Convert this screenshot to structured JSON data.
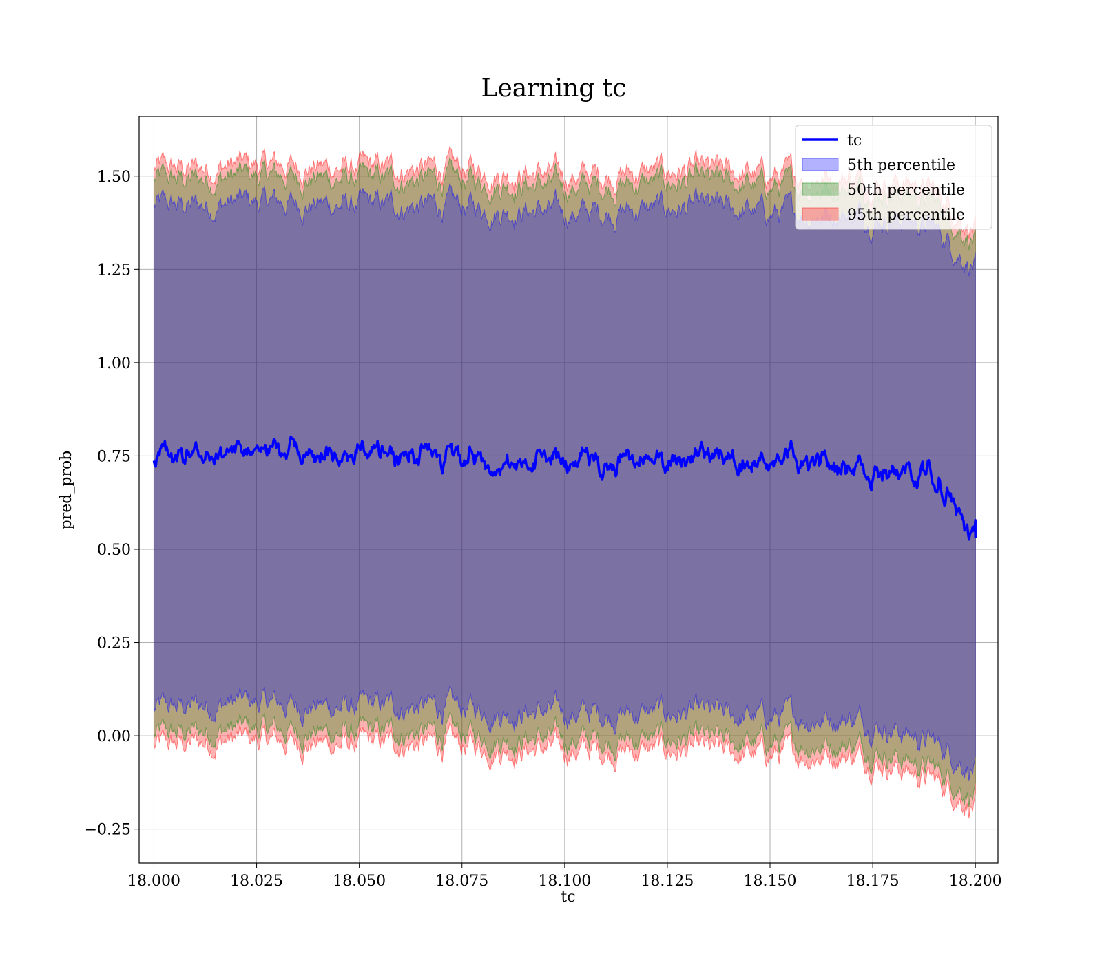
{
  "chart_data": {
    "type": "line",
    "title": "Learning tc",
    "xlabel": "tc",
    "ylabel": "pred_prob",
    "xlim": [
      17.9964,
      18.2055
    ],
    "ylim": [
      -0.341,
      1.66
    ],
    "x_ticks": [
      18.0,
      18.025,
      18.05,
      18.075,
      18.1,
      18.125,
      18.15,
      18.175,
      18.2
    ],
    "x_tick_labels": [
      "18.000",
      "18.025",
      "18.050",
      "18.075",
      "18.100",
      "18.125",
      "18.150",
      "18.175",
      "18.200"
    ],
    "y_ticks": [
      -0.25,
      0.0,
      0.25,
      0.5,
      0.75,
      1.0,
      1.25,
      1.5
    ],
    "y_tick_labels": [
      "−0.25",
      "0.00",
      "0.25",
      "0.50",
      "0.75",
      "1.00",
      "1.25",
      "1.50"
    ],
    "grid": true,
    "legend_position": "top-right",
    "colors": {
      "line": "#0000ff",
      "band_5": "#0000ff",
      "band_50": "#008000",
      "band_95": "#ff0000"
    },
    "legend": [
      "tc",
      "5th percentile",
      "50th percentile",
      "95th percentile"
    ],
    "series": [
      {
        "name": "tc",
        "x": [
          18.0,
          18.005,
          18.01,
          18.015,
          18.02,
          18.025,
          18.03,
          18.035,
          18.04,
          18.045,
          18.05,
          18.055,
          18.06,
          18.065,
          18.07,
          18.075,
          18.08,
          18.085,
          18.09,
          18.095,
          18.1,
          18.105,
          18.11,
          18.115,
          18.12,
          18.125,
          18.13,
          18.135,
          18.14,
          18.145,
          18.15,
          18.155,
          18.16,
          18.165,
          18.17,
          18.175,
          18.18,
          18.185,
          18.19,
          18.195,
          18.2
        ],
        "values": [
          0.74,
          0.75,
          0.76,
          0.755,
          0.765,
          0.76,
          0.765,
          0.755,
          0.755,
          0.75,
          0.755,
          0.75,
          0.75,
          0.755,
          0.755,
          0.755,
          0.745,
          0.745,
          0.74,
          0.74,
          0.74,
          0.745,
          0.735,
          0.74,
          0.74,
          0.74,
          0.745,
          0.74,
          0.735,
          0.73,
          0.725,
          0.73,
          0.735,
          0.73,
          0.73,
          0.725,
          0.715,
          0.7,
          0.675,
          0.63,
          0.57
        ]
      },
      {
        "name": "5th percentile",
        "x": [
          18.0,
          18.01,
          18.02,
          18.03,
          18.04,
          18.05,
          18.06,
          18.07,
          18.08,
          18.09,
          18.1,
          18.11,
          18.12,
          18.13,
          18.14,
          18.15,
          18.16,
          18.17,
          18.175,
          18.18,
          18.185,
          18.19,
          18.195,
          18.2
        ],
        "lower": [
          0.07,
          0.08,
          0.09,
          0.085,
          0.08,
          0.075,
          0.08,
          0.075,
          0.07,
          0.065,
          0.06,
          0.06,
          0.06,
          0.06,
          0.05,
          0.05,
          0.05,
          0.05,
          0.04,
          0.02,
          0.0,
          -0.02,
          -0.05,
          -0.09
        ],
        "upper": [
          1.42,
          1.42,
          1.43,
          1.43,
          1.425,
          1.42,
          1.42,
          1.42,
          1.415,
          1.41,
          1.4,
          1.405,
          1.41,
          1.415,
          1.41,
          1.4,
          1.4,
          1.4,
          1.39,
          1.39,
          1.38,
          1.36,
          1.31,
          1.26
        ]
      },
      {
        "name": "50th percentile",
        "x": [
          18.0,
          18.01,
          18.02,
          18.03,
          18.04,
          18.05,
          18.06,
          18.07,
          18.08,
          18.09,
          18.1,
          18.11,
          18.12,
          18.13,
          18.14,
          18.15,
          18.16,
          18.17,
          18.175,
          18.18,
          18.185,
          18.19,
          18.195,
          18.2
        ],
        "lower": [
          0.0,
          0.01,
          0.02,
          0.015,
          0.01,
          0.005,
          0.01,
          0.005,
          0.0,
          -0.005,
          -0.01,
          -0.01,
          -0.01,
          -0.01,
          -0.02,
          -0.02,
          -0.02,
          -0.02,
          -0.03,
          -0.05,
          -0.07,
          -0.09,
          -0.12,
          -0.16
        ],
        "upper": [
          1.49,
          1.49,
          1.5,
          1.5,
          1.495,
          1.49,
          1.49,
          1.49,
          1.485,
          1.48,
          1.47,
          1.475,
          1.48,
          1.485,
          1.48,
          1.47,
          1.47,
          1.47,
          1.46,
          1.46,
          1.45,
          1.43,
          1.38,
          1.33
        ]
      },
      {
        "name": "95th percentile",
        "x": [
          18.0,
          18.01,
          18.02,
          18.03,
          18.04,
          18.05,
          18.06,
          18.07,
          18.08,
          18.09,
          18.1,
          18.11,
          18.12,
          18.13,
          18.14,
          18.15,
          18.16,
          18.17,
          18.175,
          18.18,
          18.185,
          18.19,
          18.195,
          18.2
        ],
        "lower": [
          -0.03,
          -0.02,
          -0.01,
          -0.015,
          -0.02,
          -0.025,
          -0.02,
          -0.025,
          -0.03,
          -0.035,
          -0.04,
          -0.04,
          -0.04,
          -0.04,
          -0.05,
          -0.05,
          -0.05,
          -0.05,
          -0.06,
          -0.08,
          -0.1,
          -0.12,
          -0.15,
          -0.19
        ],
        "upper": [
          1.52,
          1.52,
          1.53,
          1.53,
          1.525,
          1.52,
          1.52,
          1.52,
          1.515,
          1.51,
          1.5,
          1.505,
          1.51,
          1.515,
          1.51,
          1.5,
          1.5,
          1.5,
          1.49,
          1.49,
          1.48,
          1.46,
          1.41,
          1.36
        ]
      }
    ]
  }
}
